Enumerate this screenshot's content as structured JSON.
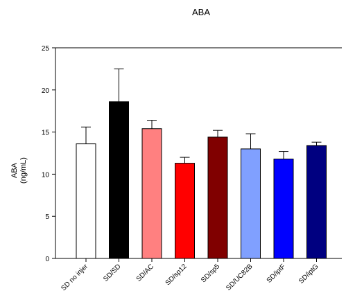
{
  "chart_data": {
    "type": "bar",
    "title": "ABA",
    "ylabel_line1": "ABA",
    "ylabel_line2": "(ng/mL)",
    "xlabel": "",
    "ylim": [
      0,
      25
    ],
    "yticks": [
      0,
      5,
      10,
      15,
      20,
      25
    ],
    "grid": false,
    "legend": "none",
    "categories": [
      "SD no injer",
      "SD/SD",
      "SD/AC",
      "SD/sp12",
      "SD/sp5",
      "SD/UC82B",
      "SD/iptF",
      "SD/iptG"
    ],
    "values": [
      13.6,
      18.6,
      15.4,
      11.3,
      14.4,
      13.0,
      11.8,
      13.4
    ],
    "errors": [
      2.0,
      3.9,
      1.0,
      0.7,
      0.8,
      1.8,
      0.9,
      0.4
    ],
    "colors": [
      "#ffffff",
      "#000000",
      "#ff8080",
      "#ff0000",
      "#800000",
      "#80a0ff",
      "#0000ff",
      "#000080"
    ]
  }
}
